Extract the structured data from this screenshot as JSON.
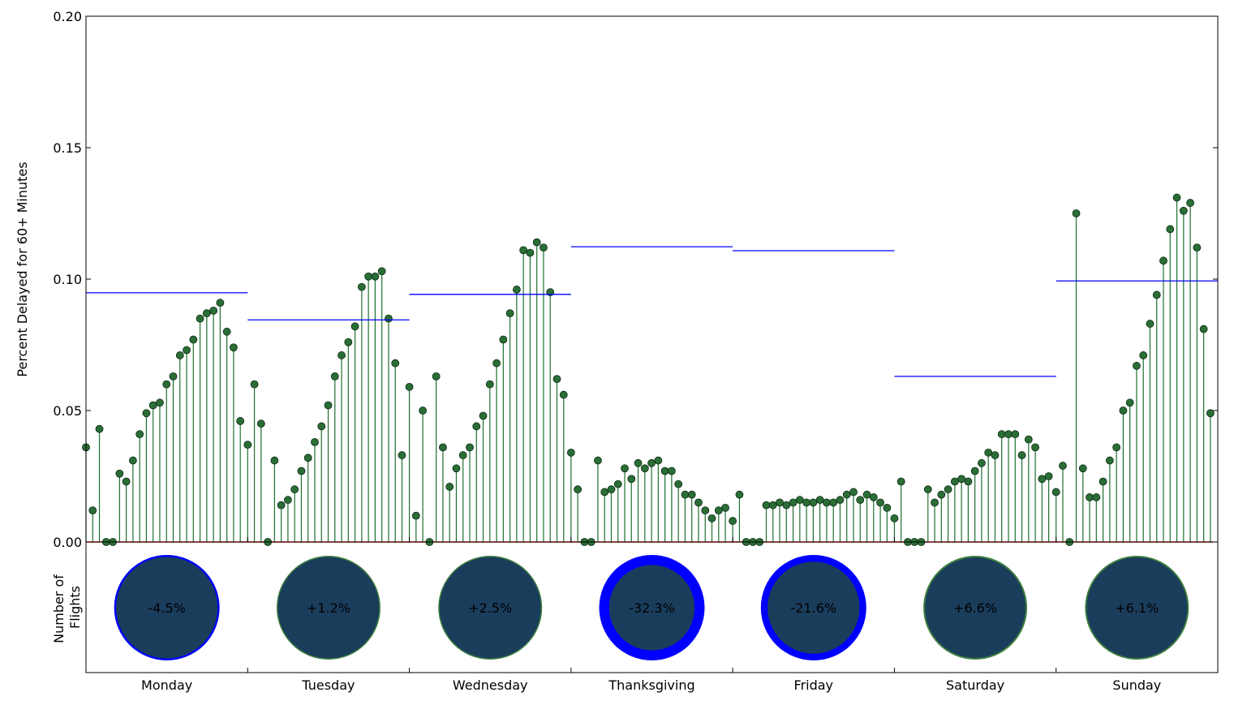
{
  "chart_data": {
    "type": "stem",
    "ylabel": "Percent Delayed for 60+ Minutes",
    "ylim": [
      0,
      0.2
    ],
    "yticks": [
      "0.00",
      "0.05",
      "0.10",
      "0.15",
      "0.20"
    ],
    "hours_per_day": 24,
    "days": [
      {
        "label": "Monday",
        "avg_delay": 0.0948,
        "flight_change_label": "-4.5%",
        "ring_color": "#0000ff",
        "values": [
          0.036,
          0.012,
          0.043,
          0.0,
          0.0,
          0.026,
          0.023,
          0.031,
          0.041,
          0.049,
          0.052,
          0.053,
          0.06,
          0.063,
          0.071,
          0.073,
          0.077,
          0.085,
          0.087,
          0.088,
          0.091,
          0.08,
          0.074,
          0.046
        ]
      },
      {
        "label": "Tuesday",
        "avg_delay": 0.0845,
        "flight_change_label": "+1.2%",
        "ring_color": "#3f7f3f",
        "values": [
          0.037,
          0.06,
          0.045,
          0.0,
          0.031,
          0.014,
          0.016,
          0.02,
          0.027,
          0.032,
          0.038,
          0.044,
          0.052,
          0.063,
          0.071,
          0.076,
          0.082,
          0.097,
          0.101,
          0.101,
          0.103,
          0.085,
          0.068,
          0.033
        ]
      },
      {
        "label": "Wednesday",
        "avg_delay": 0.0942,
        "flight_change_label": "+2.5%",
        "ring_color": "#3f7f3f",
        "values": [
          0.059,
          0.01,
          0.05,
          0.0,
          0.063,
          0.036,
          0.021,
          0.028,
          0.033,
          0.036,
          0.044,
          0.048,
          0.06,
          0.068,
          0.077,
          0.087,
          0.096,
          0.111,
          0.11,
          0.114,
          0.112,
          0.095,
          0.062,
          0.056
        ]
      },
      {
        "label": "Thanksgiving",
        "avg_delay": 0.1123,
        "flight_change_label": "-32.3%",
        "ring_color": "#0000ff",
        "values": [
          0.034,
          0.02,
          0.0,
          0.0,
          0.031,
          0.019,
          0.02,
          0.022,
          0.028,
          0.024,
          0.03,
          0.028,
          0.03,
          0.031,
          0.027,
          0.027,
          0.022,
          0.018,
          0.018,
          0.015,
          0.012,
          0.009,
          0.012,
          0.013
        ]
      },
      {
        "label": "Friday",
        "avg_delay": 0.1108,
        "flight_change_label": "-21.6%",
        "ring_color": "#0000ff",
        "values": [
          0.008,
          0.018,
          0.0,
          0.0,
          0.0,
          0.014,
          0.014,
          0.015,
          0.014,
          0.015,
          0.016,
          0.015,
          0.015,
          0.016,
          0.015,
          0.015,
          0.016,
          0.018,
          0.019,
          0.016,
          0.018,
          0.017,
          0.015,
          0.013
        ]
      },
      {
        "label": "Saturday",
        "avg_delay": 0.063,
        "flight_change_label": "+6.6%",
        "ring_color": "#3f7f3f",
        "values": [
          0.009,
          0.023,
          0.0,
          0.0,
          0.0,
          0.02,
          0.015,
          0.018,
          0.02,
          0.023,
          0.024,
          0.023,
          0.027,
          0.03,
          0.034,
          0.033,
          0.041,
          0.041,
          0.041,
          0.033,
          0.039,
          0.036,
          0.024,
          0.025
        ]
      },
      {
        "label": "Sunday",
        "avg_delay": 0.0993,
        "flight_change_label": "+6.1%",
        "ring_color": "#3f7f3f",
        "values": [
          0.019,
          0.029,
          0.0,
          0.125,
          0.028,
          0.017,
          0.017,
          0.023,
          0.031,
          0.036,
          0.05,
          0.053,
          0.067,
          0.071,
          0.083,
          0.094,
          0.107,
          0.119,
          0.131,
          0.126,
          0.129,
          0.112,
          0.081,
          0.049
        ]
      }
    ],
    "bottom_ylabel_line1": "Number of",
    "bottom_ylabel_line2": "Flights",
    "colors": {
      "stem": "#1f6f2f",
      "marker": "#2a6e36",
      "avg_line": "#0000ff",
      "baseline": "#ff0000",
      "circle_fill": "#1a3d5c"
    },
    "grid": false,
    "legend": "none"
  }
}
